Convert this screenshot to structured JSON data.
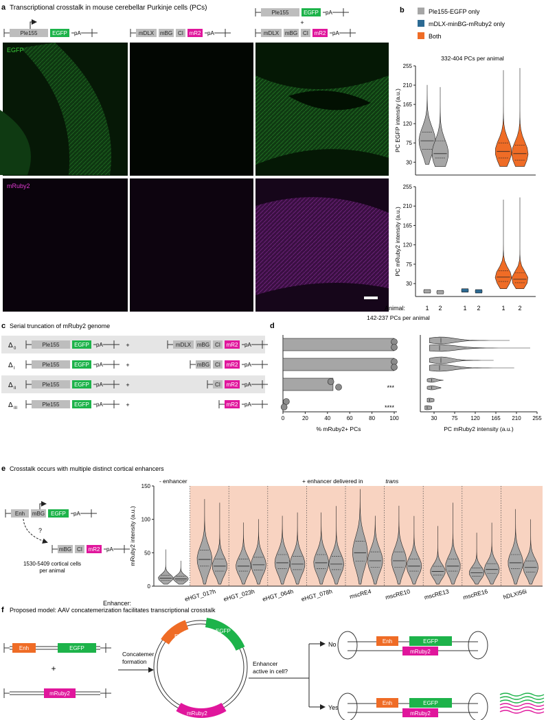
{
  "panel_a": {
    "letter": "a",
    "title": "Transcriptional crosstalk in mouse cerebellar Purkinje cells (PCs)",
    "construct_top": [
      "Ple155",
      "EGFP",
      "pA"
    ],
    "construct_dlx": [
      "mDLX",
      "mBG",
      "CI",
      "mR2",
      "pA"
    ],
    "plus": "+",
    "label_egfp": "EGFP",
    "label_mruby": "mRuby2"
  },
  "panel_b": {
    "letter": "b",
    "legend": [
      "Ple155-EGFP only",
      "mDLX-minBG-mRuby2 only",
      "Both"
    ],
    "legend_colors": [
      "#a6a6a6",
      "#2c6a93",
      "#ef6c26"
    ],
    "subtitle": "332-404 PCs per animal",
    "ylabel_top": "PC EGFP intensity (a.u.)",
    "ylabel_bottom": "PC mRuby2 intensity (a.u.)",
    "yticks": [
      "255",
      "210",
      "165",
      "120",
      "75",
      "30"
    ],
    "animal_label": "Animal:",
    "animals": [
      "1",
      "2",
      "1",
      "2",
      "1",
      "2"
    ]
  },
  "panel_c": {
    "letter": "c",
    "title": "Serial truncation of mRuby2 genome",
    "rows": [
      {
        "label": "Δ0",
        "right": [
          "mDLX",
          "mBG",
          "CI",
          "mR2",
          "pA"
        ]
      },
      {
        "label": "ΔI",
        "right": [
          "mBG",
          "CI",
          "mR2",
          "pA"
        ]
      },
      {
        "label": "ΔII",
        "right": [
          "CI",
          "mR2",
          "pA"
        ]
      },
      {
        "label": "ΔIII",
        "right": [
          "mR2",
          "pA"
        ]
      }
    ],
    "left": [
      "Ple155",
      "EGFP",
      "pA"
    ],
    "plus": "+"
  },
  "panel_d": {
    "letter": "d",
    "subtitle": "142-237 PCs per animal",
    "xlabel_left": "% mRuby2+ PCs",
    "xticks_left": [
      "0",
      "20",
      "40",
      "60",
      "80",
      "100"
    ],
    "xlabel_right": "PC mRuby2 intensity (a.u.)",
    "xticks_right": [
      "30",
      "75",
      "120",
      "165",
      "210",
      "255"
    ],
    "sig": [
      "***",
      "****"
    ]
  },
  "panel_e": {
    "letter": "e",
    "title": "Crosstalk occurs with multiple distinct cortical enhancers",
    "schematic_top": [
      "Enh",
      "mBG",
      "EGFP",
      "pA"
    ],
    "schematic_bottom": [
      "mBG",
      "CI",
      "mR2",
      "pA"
    ],
    "question": "?",
    "cells_line1": "1530-5409 cortical cells",
    "cells_line2": "per animal",
    "label_no_enh": "- enhancer",
    "label_with_enh": "+ enhancer delivered in",
    "label_trans": "trans",
    "ylabel": "mRuby2 intensity (a.u.)",
    "yticks": [
      "150",
      "100",
      "50",
      "0"
    ],
    "enhancer_label": "Enhancer:",
    "enhancers": [
      "eHGT_017h",
      "eHGT_023h",
      "eHGT_064h",
      "eHGT_078h",
      "mscRE4",
      "mscRE10",
      "mscRE13",
      "mscRE16",
      "hDLXI56i"
    ]
  },
  "panel_f": {
    "letter": "f",
    "title": "Proposed model: AAV concatemerization facilitates transcriptional crosstalk",
    "enh": "Enh",
    "egfp": "EGFP",
    "mruby": "mRuby2",
    "plus": "+",
    "concat_line1": "Concatemer",
    "concat_line2": "formation",
    "question_line1": "Enhancer",
    "question_line2": "active in cell?",
    "no": "No",
    "yes": "Yes"
  },
  "chart_data": [
    {
      "type": "violin",
      "panel": "b-top",
      "ylabel": "PC EGFP intensity (a.u.)",
      "ylim": [
        0,
        255
      ],
      "groups": [
        "Ple155-EGFP only",
        "Ple155-EGFP only",
        "mDLX-minBG-mRuby2 only",
        "mDLX-minBG-mRuby2 only",
        "Both",
        "Both"
      ],
      "animals": [
        1,
        2,
        1,
        2,
        1,
        2
      ],
      "medians": [
        80,
        50,
        null,
        null,
        55,
        50
      ],
      "q1": [
        60,
        40,
        null,
        null,
        40,
        35
      ],
      "q3": [
        100,
        80,
        null,
        null,
        75,
        70
      ],
      "max": [
        210,
        205,
        null,
        null,
        245,
        250
      ],
      "min": [
        25,
        20,
        null,
        null,
        20,
        20
      ]
    },
    {
      "type": "violin",
      "panel": "b-bottom",
      "ylabel": "PC mRuby2 intensity (a.u.)",
      "ylim": [
        0,
        255
      ],
      "groups": [
        "Ple155-EGFP only",
        "Ple155-EGFP only",
        "mDLX-minBG-mRuby2 only",
        "mDLX-minBG-mRuby2 only",
        "Both",
        "Both"
      ],
      "animals": [
        1,
        2,
        1,
        2,
        1,
        2
      ],
      "medians": [
        12,
        10,
        14,
        12,
        45,
        40
      ],
      "q1": [
        10,
        8,
        12,
        10,
        35,
        32
      ],
      "q3": [
        14,
        12,
        16,
        14,
        60,
        55
      ],
      "max": [
        16,
        14,
        18,
        16,
        225,
        230
      ],
      "min": [
        8,
        6,
        10,
        8,
        18,
        18
      ]
    },
    {
      "type": "bar",
      "panel": "d-left",
      "xlabel": "% mRuby2+ PCs",
      "xlim": [
        0,
        100
      ],
      "categories": [
        "Δ0",
        "ΔI",
        "ΔII",
        "ΔIII"
      ],
      "values": [
        100,
        100,
        45,
        2
      ],
      "points": [
        [
          100,
          100
        ],
        [
          100,
          100
        ],
        [
          43,
          50
        ],
        [
          3,
          1
        ]
      ]
    },
    {
      "type": "violin",
      "panel": "d-right",
      "xlabel": "PC mRuby2 intensity (a.u.)",
      "xlim": [
        0,
        255
      ],
      "categories": [
        "Δ0",
        "Δ0",
        "ΔI",
        "ΔI",
        "ΔII",
        "ΔII",
        "ΔIII",
        "ΔIII"
      ],
      "medians": [
        45,
        42,
        45,
        42,
        25,
        25,
        20,
        15
      ],
      "max": [
        195,
        240,
        160,
        205,
        50,
        45,
        30,
        25
      ],
      "min": [
        20,
        20,
        20,
        20,
        15,
        15,
        15,
        10
      ]
    },
    {
      "type": "violin",
      "panel": "e",
      "ylabel": "mRuby2 intensity (a.u.)",
      "ylim": [
        0,
        150
      ],
      "categories": [
        "- enhancer",
        "eHGT_017h",
        "eHGT_023h",
        "eHGT_064h",
        "eHGT_078h",
        "mscRE4",
        "mscRE10",
        "mscRE13",
        "mscRE16",
        "hDLXI56i"
      ],
      "medians_animal1": [
        12,
        40,
        30,
        35,
        35,
        50,
        38,
        22,
        20,
        35
      ],
      "medians_animal2": [
        11,
        30,
        32,
        33,
        33,
        38,
        30,
        30,
        25,
        28
      ],
      "max_animal1": [
        55,
        130,
        95,
        105,
        110,
        145,
        120,
        90,
        80,
        115
      ],
      "max_animal2": [
        38,
        125,
        100,
        110,
        120,
        105,
        105,
        125,
        95,
        100
      ]
    }
  ]
}
